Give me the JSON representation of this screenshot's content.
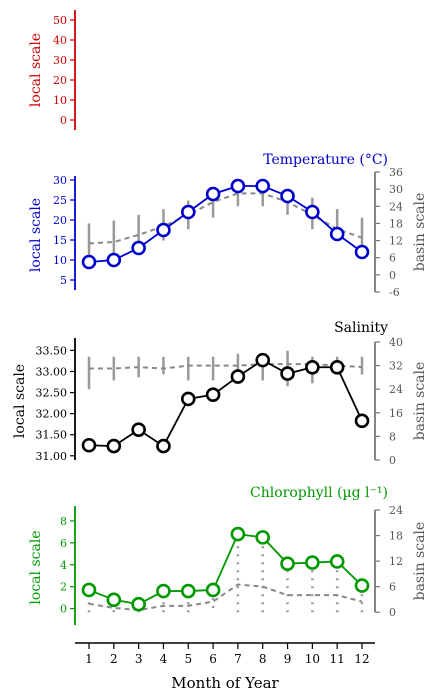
{
  "chart_data": {
    "type": "line",
    "xlabel": "Month of Year",
    "x": [
      1,
      2,
      3,
      4,
      5,
      6,
      7,
      8,
      9,
      10,
      11,
      12
    ],
    "panels": [
      {
        "id": "top",
        "title": "",
        "color": "#cc0000",
        "local_label": "local scale",
        "local_ticks": [
          0,
          10,
          20,
          30,
          40,
          50
        ],
        "local_range": [
          -5,
          55
        ],
        "basin_label": "",
        "basin_ticks": [],
        "series": []
      },
      {
        "id": "temperature",
        "title": "Temperature (°C)",
        "color": "#0000cc",
        "local_label": "local scale",
        "local_ticks": [
          5,
          10,
          15,
          20,
          25,
          30
        ],
        "local_range": [
          2,
          32
        ],
        "local_values": [
          9.5,
          10,
          13,
          17.5,
          22,
          26.5,
          28.5,
          28.5,
          26,
          22,
          16.5,
          12
        ],
        "basin_label": "basin scale",
        "basin_ticks": [
          -6,
          0,
          6,
          12,
          18,
          24,
          30,
          36
        ],
        "basin_range": [
          -6,
          36
        ],
        "basin_mean": [
          11,
          11.5,
          14,
          17,
          21,
          25.5,
          28.5,
          28.5,
          25.5,
          21,
          16,
          13
        ],
        "basin_ranges": [
          [
            6,
            18
          ],
          [
            6,
            19
          ],
          [
            9,
            21
          ],
          [
            12,
            23
          ],
          [
            16,
            26
          ],
          [
            20,
            29
          ],
          [
            24,
            31
          ],
          [
            24,
            31
          ],
          [
            21,
            30
          ],
          [
            16,
            27
          ],
          [
            12,
            23
          ],
          [
            8,
            20
          ]
        ]
      },
      {
        "id": "salinity",
        "title": "Salinity",
        "color": "#000000",
        "local_label": "local scale",
        "local_ticks": [
          "31.00",
          "31.50",
          "32.00",
          "32.50",
          "33.00",
          "33.50"
        ],
        "local_range": [
          30.9,
          33.7
        ],
        "local_values": [
          31.25,
          31.23,
          31.62,
          31.23,
          32.35,
          32.45,
          32.88,
          33.27,
          32.95,
          33.1,
          33.1,
          31.83
        ],
        "basin_label": "basin scale",
        "basin_ticks": [
          0,
          8,
          16,
          24,
          32,
          40
        ],
        "basin_range": [
          0,
          40
        ],
        "basin_mean": [
          31,
          31,
          31.5,
          31,
          32,
          32,
          32,
          32.5,
          32.5,
          32.5,
          32,
          31.5
        ],
        "basin_ranges": [
          [
            24,
            35
          ],
          [
            27,
            35
          ],
          [
            28,
            35
          ],
          [
            29,
            35
          ],
          [
            27,
            35
          ],
          [
            27,
            35
          ],
          [
            28,
            36
          ],
          [
            27,
            36
          ],
          [
            25,
            37
          ],
          [
            26,
            35
          ],
          [
            29,
            35
          ],
          [
            29,
            35
          ]
        ]
      },
      {
        "id": "chlorophyll",
        "title": "Chlorophyll (µg l⁻¹)",
        "color": "#009900",
        "local_label": "local scale",
        "local_ticks": [
          0,
          2,
          4,
          6,
          8
        ],
        "local_range": [
          -1.5,
          9
        ],
        "local_values": [
          1.7,
          0.8,
          0.4,
          1.6,
          1.6,
          1.7,
          6.8,
          6.5,
          4.1,
          4.2,
          4.3,
          2.1
        ],
        "basin_label": "basin scale",
        "basin_ticks": [
          0,
          6,
          12,
          18,
          24
        ],
        "basin_range": [
          -3,
          24
        ],
        "basin_mean": [
          2,
          1,
          0.5,
          1.5,
          1.5,
          2.5,
          6.5,
          6,
          4,
          4,
          4,
          2.5
        ],
        "basin_ranges": [
          [
            0,
            3
          ],
          [
            0,
            2
          ],
          [
            0,
            1
          ],
          [
            0,
            3
          ],
          [
            0,
            3
          ],
          [
            1,
            4
          ],
          [
            0,
            18
          ],
          [
            0,
            16
          ],
          [
            0,
            12
          ],
          [
            0,
            12
          ],
          [
            0,
            11
          ],
          [
            0,
            6
          ]
        ]
      }
    ]
  }
}
